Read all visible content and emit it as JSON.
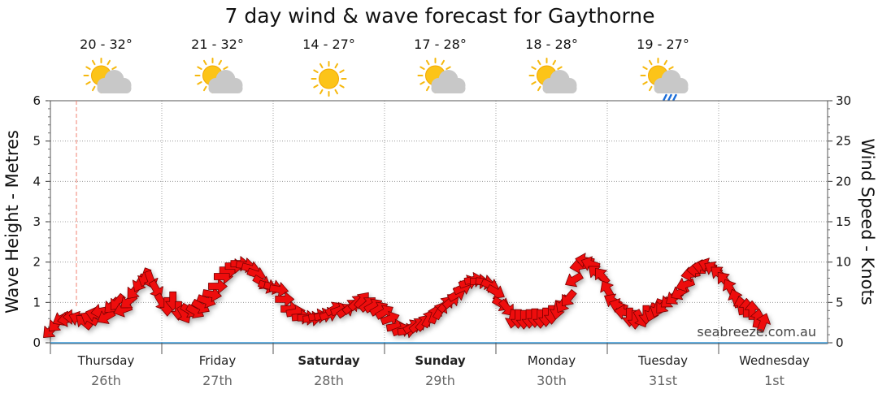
{
  "chart_data": {
    "type": "line",
    "title": "7 day wind & wave forecast for Gaythorne",
    "ylabel": "Wave Height - Metres",
    "ylabel_right": "Wind Speed - Knots",
    "ylim": [
      0,
      6
    ],
    "ylim_right": [
      0,
      30
    ],
    "yticks": [
      "0",
      "1",
      "2",
      "3",
      "4",
      "5",
      "6"
    ],
    "yticks_right": [
      "0",
      "5",
      "10",
      "15",
      "20",
      "25",
      "30"
    ],
    "grid": true,
    "watermark": "seabreeze.com.au",
    "days": [
      {
        "name": "Thursday",
        "date": "26th",
        "temp": "20 - 32°",
        "icon": "sun-cloud-icon",
        "bold": false
      },
      {
        "name": "Friday",
        "date": "27th",
        "temp": "21 - 32°",
        "icon": "sun-cloud-icon",
        "bold": false
      },
      {
        "name": "Saturday",
        "date": "28th",
        "temp": "14 - 27°",
        "icon": "sun-icon",
        "bold": true
      },
      {
        "name": "Sunday",
        "date": "29th",
        "temp": "17 - 28°",
        "icon": "sun-cloud-icon",
        "bold": true
      },
      {
        "name": "Monday",
        "date": "30th",
        "temp": "18 - 28°",
        "icon": "sun-cloud-icon",
        "bold": false
      },
      {
        "name": "Tuesday",
        "date": "31st",
        "temp": "19 - 27°",
        "icon": "sun-cloud-rain-icon",
        "bold": false
      },
      {
        "name": "Wednesday",
        "date": "1st",
        "temp": "",
        "icon": "",
        "bold": false
      }
    ],
    "wind_series": {
      "name": "Wind Speed",
      "units": "knots",
      "x_unit": "days from start of Thursday",
      "points": [
        [
          0.0,
          1.5,
          45
        ],
        [
          0.05,
          2.3,
          45
        ],
        [
          0.1,
          3.0,
          60
        ],
        [
          0.15,
          2.9,
          80
        ],
        [
          0.2,
          3.2,
          90
        ],
        [
          0.25,
          3.0,
          110
        ],
        [
          0.3,
          2.6,
          130
        ],
        [
          0.35,
          3.0,
          120
        ],
        [
          0.4,
          3.5,
          105
        ],
        [
          0.45,
          3.9,
          80
        ],
        [
          0.5,
          3.2,
          60
        ],
        [
          0.55,
          4.6,
          45
        ],
        [
          0.6,
          5.0,
          40
        ],
        [
          0.65,
          4.1,
          70
        ],
        [
          0.7,
          5.1,
          50
        ],
        [
          0.75,
          6.4,
          40
        ],
        [
          0.8,
          7.4,
          30
        ],
        [
          0.85,
          8.1,
          20
        ],
        [
          0.9,
          7.8,
          340
        ],
        [
          0.95,
          6.6,
          330
        ],
        [
          1.0,
          5.0,
          330
        ],
        [
          1.05,
          4.5,
          0
        ],
        [
          1.1,
          5.2,
          0
        ],
        [
          1.15,
          4.0,
          0
        ],
        [
          1.2,
          3.5,
          330
        ],
        [
          1.25,
          4.0,
          300
        ],
        [
          1.3,
          3.9,
          300
        ],
        [
          1.35,
          4.5,
          300
        ],
        [
          1.4,
          5.2,
          290
        ],
        [
          1.45,
          6.0,
          280
        ],
        [
          1.5,
          7.0,
          270
        ],
        [
          1.55,
          8.2,
          270
        ],
        [
          1.6,
          9.0,
          270
        ],
        [
          1.65,
          9.5,
          270
        ],
        [
          1.7,
          9.8,
          270
        ],
        [
          1.75,
          9.6,
          275
        ],
        [
          1.8,
          9.2,
          285
        ],
        [
          1.85,
          8.5,
          290
        ],
        [
          1.9,
          7.5,
          300
        ],
        [
          1.95,
          7.0,
          290
        ],
        [
          2.0,
          6.9,
          285
        ],
        [
          2.05,
          6.6,
          280
        ],
        [
          2.1,
          5.4,
          270
        ],
        [
          2.15,
          4.2,
          270
        ],
        [
          2.2,
          3.8,
          260
        ],
        [
          2.25,
          3.2,
          265
        ],
        [
          2.3,
          3.1,
          270
        ],
        [
          2.35,
          3.0,
          265
        ],
        [
          2.4,
          3.3,
          260
        ],
        [
          2.45,
          3.4,
          255
        ],
        [
          2.5,
          3.5,
          250
        ],
        [
          2.55,
          4.2,
          240
        ],
        [
          2.6,
          4.1,
          250
        ],
        [
          2.65,
          4.0,
          235
        ],
        [
          2.7,
          4.5,
          230
        ],
        [
          2.75,
          5.0,
          225
        ],
        [
          2.8,
          5.3,
          220
        ],
        [
          2.85,
          4.8,
          230
        ],
        [
          2.9,
          4.6,
          240
        ],
        [
          2.95,
          4.2,
          240
        ],
        [
          3.0,
          3.8,
          240
        ],
        [
          3.05,
          3.0,
          250
        ],
        [
          3.1,
          2.0,
          260
        ],
        [
          3.15,
          1.6,
          250
        ],
        [
          3.2,
          1.5,
          260
        ],
        [
          3.25,
          2.0,
          240
        ],
        [
          3.3,
          2.2,
          230
        ],
        [
          3.35,
          2.5,
          220
        ],
        [
          3.4,
          3.0,
          210
        ],
        [
          3.45,
          3.5,
          200
        ],
        [
          3.5,
          4.0,
          210
        ],
        [
          3.55,
          4.8,
          220
        ],
        [
          3.6,
          5.2,
          230
        ],
        [
          3.65,
          6.0,
          240
        ],
        [
          3.7,
          6.8,
          245
        ],
        [
          3.75,
          7.5,
          250
        ],
        [
          3.8,
          7.8,
          260
        ],
        [
          3.85,
          7.6,
          270
        ],
        [
          3.9,
          7.5,
          280
        ],
        [
          3.95,
          7.1,
          295
        ],
        [
          4.0,
          6.3,
          300
        ],
        [
          4.05,
          4.8,
          300
        ],
        [
          4.1,
          4.3,
          320
        ],
        [
          4.15,
          3.0,
          10
        ],
        [
          4.2,
          3.0,
          0
        ],
        [
          4.25,
          2.9,
          0
        ],
        [
          4.3,
          3.0,
          0
        ],
        [
          4.35,
          3.1,
          0
        ],
        [
          4.4,
          3.0,
          0
        ],
        [
          4.45,
          3.2,
          0
        ],
        [
          4.5,
          3.5,
          0
        ],
        [
          4.55,
          4.1,
          10
        ],
        [
          4.6,
          4.8,
          30
        ],
        [
          4.65,
          5.5,
          40
        ],
        [
          4.7,
          7.8,
          60
        ],
        [
          4.75,
          9.5,
          80
        ],
        [
          4.8,
          10.2,
          100
        ],
        [
          4.85,
          9.8,
          110
        ],
        [
          4.9,
          8.7,
          130
        ],
        [
          4.95,
          8.3,
          140
        ],
        [
          5.0,
          6.6,
          150
        ],
        [
          5.05,
          5.2,
          120
        ],
        [
          5.1,
          4.6,
          110
        ],
        [
          5.15,
          3.8,
          100
        ],
        [
          5.2,
          3.2,
          0
        ],
        [
          5.25,
          2.9,
          0
        ],
        [
          5.3,
          3.0,
          330
        ],
        [
          5.35,
          3.5,
          0
        ],
        [
          5.4,
          3.8,
          20
        ],
        [
          5.45,
          4.3,
          20
        ],
        [
          5.5,
          4.6,
          40
        ],
        [
          5.55,
          5.2,
          50
        ],
        [
          5.6,
          5.6,
          55
        ],
        [
          5.65,
          6.2,
          60
        ],
        [
          5.7,
          7.2,
          70
        ],
        [
          5.75,
          8.5,
          80
        ],
        [
          5.8,
          9.0,
          90
        ],
        [
          5.85,
          9.4,
          100
        ],
        [
          5.9,
          9.6,
          110
        ],
        [
          5.95,
          9.2,
          120
        ],
        [
          6.0,
          8.6,
          130
        ],
        [
          6.05,
          7.8,
          140
        ],
        [
          6.1,
          6.8,
          150
        ],
        [
          6.15,
          5.5,
          160
        ],
        [
          6.2,
          4.6,
          170
        ],
        [
          6.25,
          4.3,
          180
        ],
        [
          6.3,
          4.0,
          180
        ],
        [
          6.35,
          3.0,
          190
        ],
        [
          6.4,
          2.5,
          200
        ]
      ]
    }
  }
}
